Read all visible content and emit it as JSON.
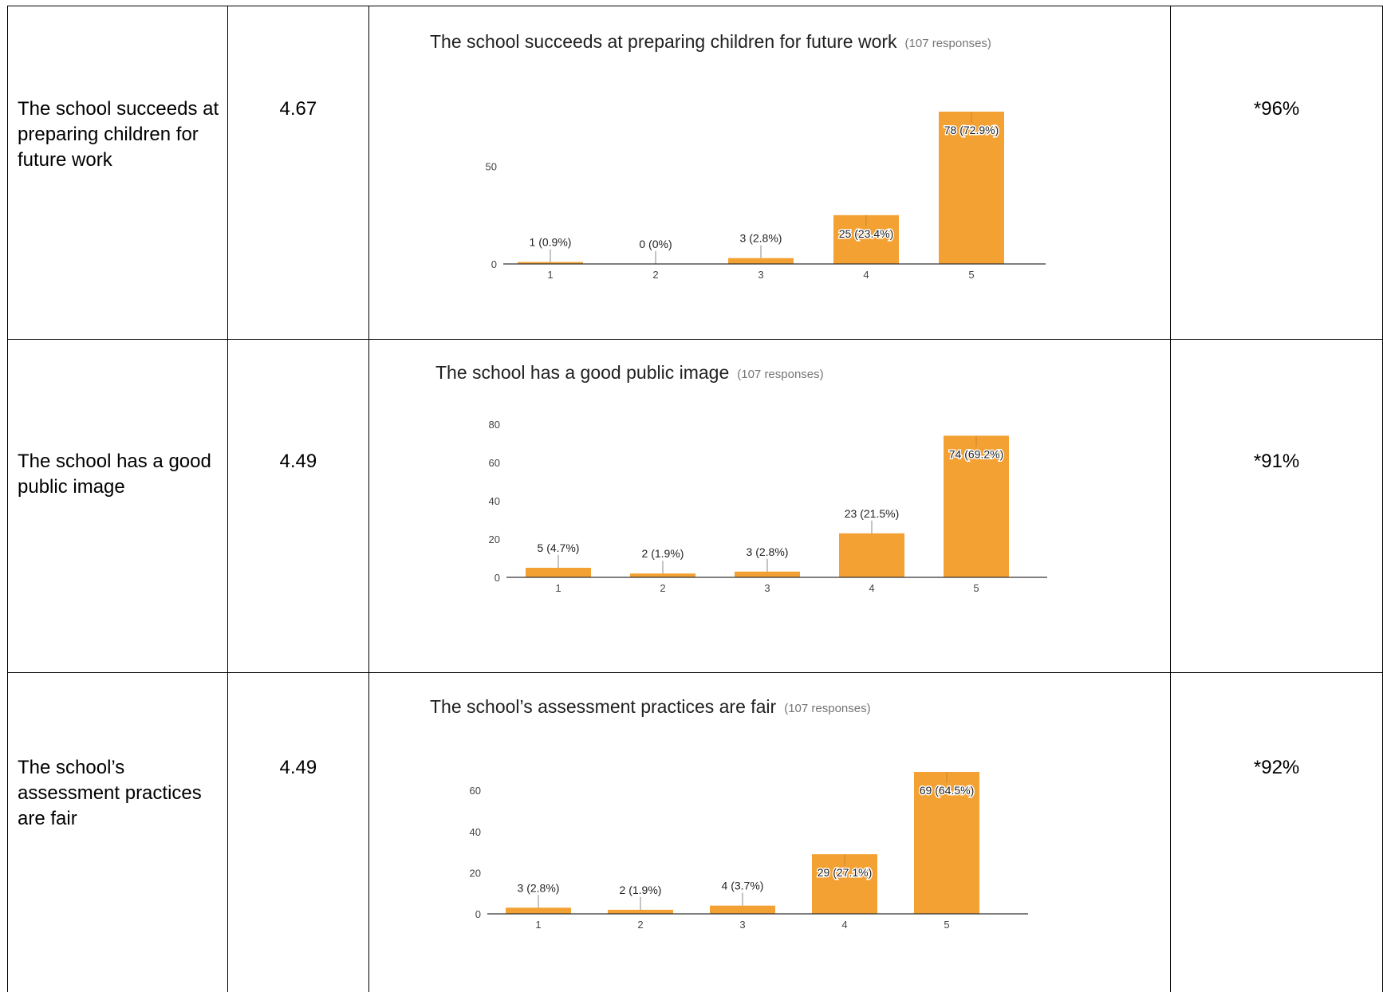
{
  "rows": [
    {
      "question": "The school succeeds at preparing children for future work",
      "average": "4.67",
      "percent": "*96%"
    },
    {
      "question": "The school has a good public image",
      "average": "4.49",
      "percent": "*91%"
    },
    {
      "question": "The school’s assessment practices are fair",
      "average": "4.49",
      "percent": "*92%"
    }
  ],
  "colors": {
    "bar": "#f4a133",
    "axis": "#333333",
    "grid": "#ffffff"
  },
  "chart_data": [
    {
      "type": "bar",
      "title": "The school succeeds at preparing children for future work",
      "responses_label": "(107 responses)",
      "categories": [
        "1",
        "2",
        "3",
        "4",
        "5"
      ],
      "values": [
        1,
        0,
        3,
        25,
        78
      ],
      "data_labels": [
        "1 (0.9%)",
        "0 (0%)",
        "3 (2.8%)",
        "25 (23.4%)",
        "78 (72.9%)"
      ],
      "yticks": [
        0,
        50
      ],
      "ylim": [
        0,
        78
      ],
      "xlabel": "",
      "ylabel": ""
    },
    {
      "type": "bar",
      "title": "The school has a good public image",
      "responses_label": "(107 responses)",
      "categories": [
        "1",
        "2",
        "3",
        "4",
        "5"
      ],
      "values": [
        5,
        2,
        3,
        23,
        74
      ],
      "data_labels": [
        "5 (4.7%)",
        "2 (1.9%)",
        "3 (2.8%)",
        "23 (21.5%)",
        "74 (69.2%)"
      ],
      "yticks": [
        0,
        20,
        40,
        60,
        80
      ],
      "ylim": [
        0,
        80
      ],
      "xlabel": "",
      "ylabel": ""
    },
    {
      "type": "bar",
      "title": "The school’s assessment practices are fair",
      "responses_label": "(107 responses)",
      "categories": [
        "1",
        "2",
        "3",
        "4",
        "5"
      ],
      "values": [
        3,
        2,
        4,
        29,
        69
      ],
      "data_labels": [
        "3 (2.8%)",
        "2 (1.9%)",
        "4 (3.7%)",
        "29 (27.1%)",
        "69 (64.5%)"
      ],
      "yticks": [
        0,
        20,
        40,
        60
      ],
      "ylim": [
        0,
        69
      ],
      "xlabel": "",
      "ylabel": ""
    }
  ]
}
